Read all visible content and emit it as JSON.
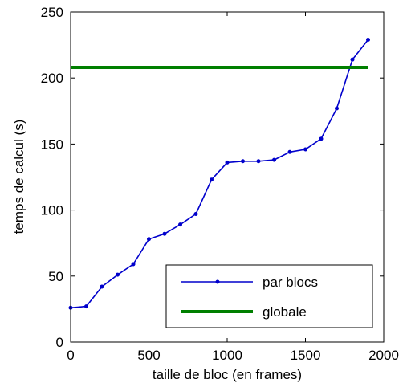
{
  "chart_data": {
    "type": "line",
    "xlabel": "taille de bloc (en frames)",
    "ylabel": "temps de calcul (s)",
    "xlim": [
      0,
      2000
    ],
    "ylim": [
      0,
      250
    ],
    "x_ticks": [
      0,
      500,
      1000,
      1500,
      2000
    ],
    "y_ticks": [
      0,
      50,
      100,
      150,
      200,
      250
    ],
    "grid": false,
    "legend_position": "bottom-right",
    "series": [
      {
        "name": "par blocs",
        "color": "#0000cc",
        "marker": "dot",
        "x": [
          0,
          100,
          200,
          300,
          400,
          500,
          600,
          700,
          800,
          900,
          1000,
          1100,
          1200,
          1300,
          1400,
          1500,
          1600,
          1700,
          1800,
          1900
        ],
        "y": [
          26,
          27,
          42,
          51,
          59,
          78,
          82,
          89,
          97,
          123,
          136,
          137,
          137,
          138,
          144,
          146,
          154,
          177,
          214,
          229
        ]
      },
      {
        "name": "globale",
        "color": "#007f00",
        "marker": "none",
        "x": [
          0,
          1900
        ],
        "y": [
          208,
          208
        ]
      }
    ]
  }
}
